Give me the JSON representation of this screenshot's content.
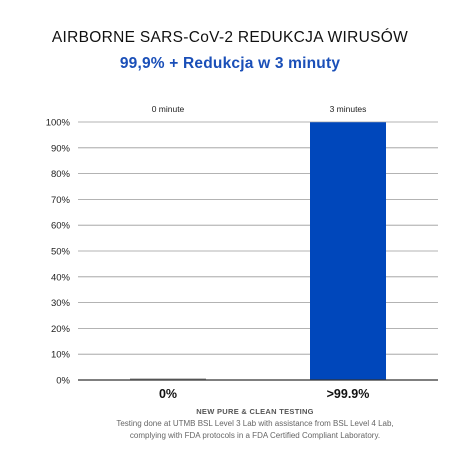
{
  "chart_data": {
    "type": "bar",
    "title": "AIRBORNE SARS-CoV-2 REDUKCJA WIRUSÓW",
    "subtitle": "99,9% + Redukcja w 3 minuty",
    "categories": [
      "0 minute",
      "3 minutes"
    ],
    "values": [
      0.3,
      99.9
    ],
    "data_labels": [
      "0%",
      ">99.9%"
    ],
    "yticks": [
      "0%",
      "10%",
      "20%",
      "30%",
      "40%",
      "50%",
      "60%",
      "70%",
      "80%",
      "90%",
      "100%"
    ],
    "ylim": [
      0,
      100
    ],
    "grid": true,
    "legend": "none",
    "colors": {
      "bar": "#0047bb",
      "subtitle": "#1a4fb8",
      "grid": "#9a9a9a"
    }
  },
  "footer": {
    "title": "NEW PURE & CLEAN TESTING",
    "line1": "Testing done at UTMB BSL Level 3 Lab with assistance from BSL Level 4 Lab,",
    "line2": "complying with FDA protocols in a FDA Certified Compliant Laboratory."
  }
}
